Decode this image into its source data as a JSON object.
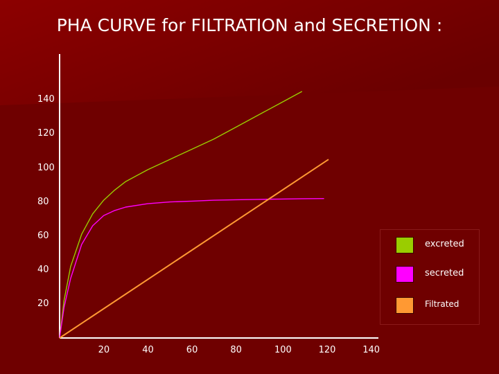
{
  "chart_data": {
    "type": "line",
    "title": "PHA CURVE for FILTRATION and SECRETION :",
    "xlabel": "",
    "ylabel": "",
    "x_ticks": [
      20,
      40,
      60,
      80,
      100,
      120,
      140
    ],
    "y_ticks": [
      20,
      40,
      60,
      80,
      100,
      120,
      140
    ],
    "xlim": [
      0,
      150
    ],
    "ylim": [
      0,
      160
    ],
    "grid": false,
    "legend_position": "right",
    "series": [
      {
        "name": "excreted",
        "color": "#9acd00",
        "x": [
          0,
          2,
          5,
          10,
          15,
          20,
          25,
          30,
          40,
          50,
          60,
          70,
          80,
          90,
          100,
          110
        ],
        "y": [
          0,
          22,
          42,
          61,
          73,
          81,
          87,
          92,
          99,
          105,
          111,
          117,
          124,
          131,
          138,
          145
        ]
      },
      {
        "name": "secreted",
        "color": "#ff00ff",
        "x": [
          0,
          2,
          5,
          10,
          15,
          20,
          25,
          30,
          40,
          50,
          60,
          70,
          80,
          90,
          100,
          110,
          120
        ],
        "y": [
          0,
          18,
          35,
          55,
          66,
          72,
          75,
          77,
          79,
          80,
          80.5,
          81,
          81.3,
          81.5,
          81.7,
          81.9,
          82
        ]
      },
      {
        "name": "Filtrated",
        "color": "#ff9933",
        "x": [
          0,
          122
        ],
        "y": [
          0,
          105
        ]
      }
    ]
  }
}
